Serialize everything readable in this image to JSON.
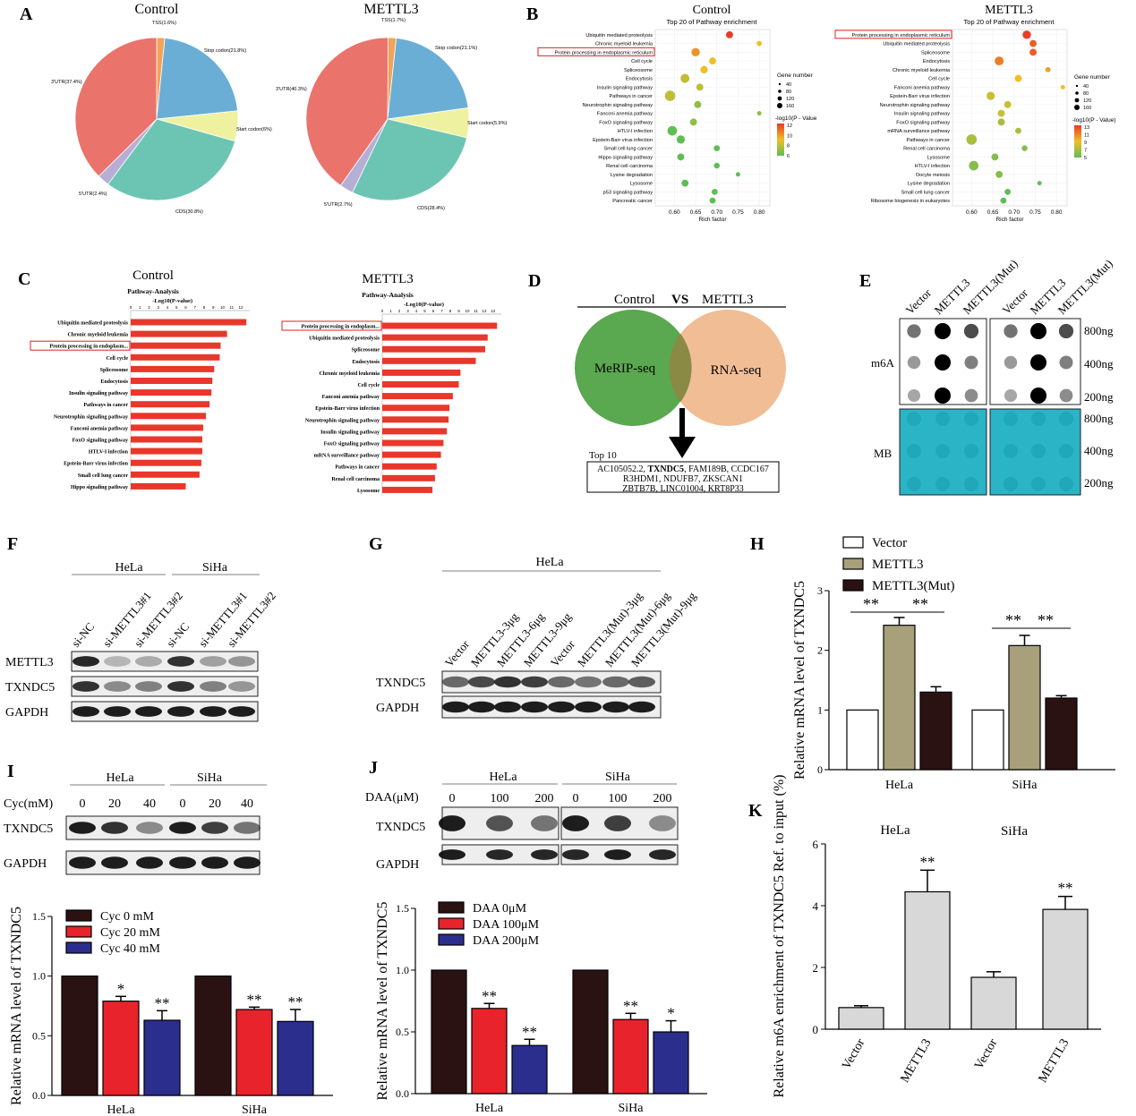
{
  "panels": {
    "A": "A",
    "B": "B",
    "C": "C",
    "D": "D",
    "E": "E",
    "F": "F",
    "G": "G",
    "H": "H",
    "I": "I",
    "J": "J",
    "K": "K"
  },
  "colors": {
    "red": "#e8232b",
    "navy": "#2b2e8c",
    "dark": "#2a1213",
    "khaki": "#a8a07a",
    "gray": "#d8d8d8",
    "cyan": "#2bb3c6",
    "venn_green": "#5aa84f",
    "venn_orange": "#f1bd95",
    "pie": [
      "#f4a259",
      "#6aaed6",
      "#eef2a0",
      "#6cc5b3",
      "#b7aed6",
      "#ea736c"
    ]
  },
  "chart_data": [
    {
      "id": "A1",
      "type": "pie",
      "title": "Control",
      "slices": [
        {
          "label": "TSS(1.6%)",
          "value": 1.6,
          "color": "#f4a259"
        },
        {
          "label": "Stop codon(21.8%)",
          "value": 21.8,
          "color": "#6aaed6"
        },
        {
          "label": "Start codon(6%)",
          "value": 6,
          "color": "#eef2a0"
        },
        {
          "label": "CDS(30.8%)",
          "value": 30.8,
          "color": "#6cc5b3"
        },
        {
          "label": "5'UTR(2.4%)",
          "value": 2.4,
          "color": "#b7aed6"
        },
        {
          "label": "3'UTR(37.4%)",
          "value": 37.4,
          "color": "#ea736c"
        }
      ]
    },
    {
      "id": "A2",
      "type": "pie",
      "title": "METTL3",
      "slices": [
        {
          "label": "TSS(1.7%)",
          "value": 1.7,
          "color": "#f4a259"
        },
        {
          "label": "Stop codon(21.1%)",
          "value": 21.1,
          "color": "#6aaed6"
        },
        {
          "label": "Start codon(5.9%)",
          "value": 5.9,
          "color": "#eef2a0"
        },
        {
          "label": "CDS(28.4%)",
          "value": 28.4,
          "color": "#6cc5b3"
        },
        {
          "label": "5'UTR(2.7%)",
          "value": 2.7,
          "color": "#b7aed6"
        },
        {
          "label": "3'UTR(40.3%)",
          "value": 40.3,
          "color": "#ea736c"
        }
      ]
    },
    {
      "id": "B1",
      "type": "scatter",
      "title": "Control",
      "subtitle": "Top 20 of Pathway enrichment",
      "xlabel": "Rich factor",
      "xticks": [
        0.6,
        0.65,
        0.7,
        0.75,
        0.8
      ],
      "xlim": [
        0.555,
        0.825
      ],
      "legend_size_title": "Gene number",
      "legend_size": [
        "40",
        "80",
        "120",
        "160"
      ],
      "legend_color_title": "-log10(P - Value",
      "legend_color": [
        "12",
        "10",
        "8",
        "6"
      ],
      "highlight": "Protein processing in endoplasmic reticulum",
      "points": [
        {
          "label": "Ubiquitin mediated proteolysis",
          "x": 0.73,
          "size": 60,
          "c": 12
        },
        {
          "label": "Chronic myeloid leukemia",
          "x": 0.8,
          "size": 25,
          "c": 9
        },
        {
          "label": "Protein processing in endoplasmic reticulum",
          "x": 0.65,
          "size": 95,
          "c": 10
        },
        {
          "label": "Cell cycle",
          "x": 0.69,
          "size": 60,
          "c": 9
        },
        {
          "label": "Spliceosome",
          "x": 0.67,
          "size": 70,
          "c": 9
        },
        {
          "label": "Endocytosis",
          "x": 0.625,
          "size": 110,
          "c": 8
        },
        {
          "label": "Insulin signaling pathway",
          "x": 0.66,
          "size": 60,
          "c": 8
        },
        {
          "label": "Pathways in cancer",
          "x": 0.59,
          "size": 160,
          "c": 8
        },
        {
          "label": "Neurotrophin signaling pathway",
          "x": 0.655,
          "size": 60,
          "c": 7
        },
        {
          "label": "Fanconi anemia pathway",
          "x": 0.8,
          "size": 15,
          "c": 7
        },
        {
          "label": "FoxO signaling pathway",
          "x": 0.645,
          "size": 60,
          "c": 7
        },
        {
          "label": "HTLV-I infection",
          "x": 0.595,
          "size": 130,
          "c": 6
        },
        {
          "label": "Epstein-Barr virus infection",
          "x": 0.615,
          "size": 90,
          "c": 6
        },
        {
          "label": "Small cell lung cancer",
          "x": 0.7,
          "size": 40,
          "c": 6
        },
        {
          "label": "Hippo signaling pathway",
          "x": 0.615,
          "size": 60,
          "c": 6
        },
        {
          "label": "Renal cell carcinoma",
          "x": 0.7,
          "size": 35,
          "c": 6
        },
        {
          "label": "Lysine degradation",
          "x": 0.75,
          "size": 15,
          "c": 6
        },
        {
          "label": "Lysosome",
          "x": 0.625,
          "size": 60,
          "c": 6
        },
        {
          "label": "p53 signaling pathway",
          "x": 0.695,
          "size": 40,
          "c": 6
        },
        {
          "label": "Pancreatic cancer",
          "x": 0.69,
          "size": 40,
          "c": 6
        }
      ]
    },
    {
      "id": "B2",
      "type": "scatter",
      "title": "METTL3",
      "subtitle": "Top 20 of Pathway enrichment",
      "xlabel": "Rich factor",
      "xticks": [
        0.6,
        0.65,
        0.7,
        0.75,
        0.8
      ],
      "xlim": [
        0.555,
        0.825
      ],
      "legend_size_title": "Gene number",
      "legend_size": [
        "40",
        "80",
        "120",
        "160"
      ],
      "legend_color_title": "-log10(P - Value)",
      "legend_color": [
        "13",
        "11",
        "9",
        "7",
        "5"
      ],
      "highlight": "Protein processing in endoplasmic reticulum",
      "points": [
        {
          "label": "Protein processing in endoplasmic reticulum",
          "x": 0.73,
          "size": 95,
          "c": 13
        },
        {
          "label": "Ubiquitin mediated proteolysis",
          "x": 0.745,
          "size": 60,
          "c": 12
        },
        {
          "label": "Spliceosome",
          "x": 0.745,
          "size": 60,
          "c": 12
        },
        {
          "label": "Endocytosis",
          "x": 0.665,
          "size": 110,
          "c": 11
        },
        {
          "label": "Chronic myeloid leukemia",
          "x": 0.78,
          "size": 25,
          "c": 10
        },
        {
          "label": "Cell cycle",
          "x": 0.71,
          "size": 60,
          "c": 9
        },
        {
          "label": "Fanconi anemia pathway",
          "x": 0.815,
          "size": 15,
          "c": 9
        },
        {
          "label": "Epstein-Barr virus infection",
          "x": 0.645,
          "size": 90,
          "c": 8
        },
        {
          "label": "Neurotrophin signaling pathway",
          "x": 0.685,
          "size": 60,
          "c": 8
        },
        {
          "label": "Insulin signaling pathway",
          "x": 0.67,
          "size": 60,
          "c": 8
        },
        {
          "label": "FoxO signaling pathway",
          "x": 0.67,
          "size": 60,
          "c": 7
        },
        {
          "label": "mRNA surveillance pathway",
          "x": 0.71,
          "size": 40,
          "c": 7
        },
        {
          "label": "Pathways in cancer",
          "x": 0.6,
          "size": 160,
          "c": 7
        },
        {
          "label": "Renal cell carcinoma",
          "x": 0.725,
          "size": 35,
          "c": 6
        },
        {
          "label": "Lysosome",
          "x": 0.655,
          "size": 60,
          "c": 6
        },
        {
          "label": "HTLV-I infection",
          "x": 0.605,
          "size": 130,
          "c": 6
        },
        {
          "label": "Oocyte meiosis",
          "x": 0.665,
          "size": 60,
          "c": 6
        },
        {
          "label": "Lysine degradation",
          "x": 0.76,
          "size": 15,
          "c": 5
        },
        {
          "label": "Small cell lung cancer",
          "x": 0.685,
          "size": 40,
          "c": 5
        },
        {
          "label": "Ribosome biogenesis in eukaryotes",
          "x": 0.675,
          "size": 40,
          "c": 5
        }
      ]
    },
    {
      "id": "C1",
      "type": "bar",
      "orientation": "horizontal",
      "title": "Control",
      "subtitle": "Pathway-Analysis",
      "xlabel": "-Log10(P-value)",
      "xticks": [
        "0",
        "1",
        "2",
        "3",
        "4",
        "5",
        "6",
        "7",
        "8",
        "9",
        "10",
        "11",
        "12"
      ],
      "xmax": 13,
      "highlight": "Protein processing in endoplasm...",
      "categories": [
        "Ubiquitin mediated proteolysis",
        "Chronic myeloid leukemia",
        "Protein processing in endoplasm...",
        "Cell cycle",
        "Spliceosome",
        "Endocytosis",
        "Insulin signaling pathway",
        "Pathways in cancer",
        "Neurotrophin signaling pathway",
        "Fanconi anemia pathway",
        "FoxO signaling pathway",
        "HTLV-I infection",
        "Epstein-Barr virus infection",
        "Small cell lung cancer",
        "Hippo signaling pathway"
      ],
      "values": [
        12.6,
        10.5,
        9.8,
        9.7,
        9.1,
        8.9,
        8.8,
        8.6,
        8.2,
        7.9,
        7.8,
        7.8,
        7.7,
        7.5,
        6.0
      ]
    },
    {
      "id": "C2",
      "type": "bar",
      "orientation": "horizontal",
      "title": "METTL3",
      "subtitle": "Pathway-Analysis",
      "xlabel": "-Log10(P-value)",
      "xticks": [
        "0",
        "1",
        "2",
        "3",
        "4",
        "5",
        "6",
        "7",
        "8",
        "9",
        "10",
        "11",
        "12",
        "13"
      ],
      "xmax": 14,
      "highlight": "Protein processing in endoplasm...",
      "categories": [
        "Protein processing in endoplasm...",
        "Ubiquitin mediated proteolysis",
        "Spliceosome",
        "Endocytosis",
        "Chronic myeloid leukemia",
        "Cell cycle",
        "Fanconi anemia pathway",
        "Epstein-Barr virus infection",
        "Neurotrophin signaling pathway",
        "Insulin signaling pathway",
        "FoxO signaling pathway",
        "mRNA surveillance pathway",
        "Pathways in cancer",
        "Renal cell carcinoma",
        "Lysosome"
      ],
      "values": [
        13.5,
        12.4,
        12.1,
        11.0,
        9.2,
        9.0,
        8.3,
        7.9,
        7.8,
        7.6,
        7.2,
        6.9,
        6.4,
        6.2,
        5.9
      ]
    },
    {
      "id": "H",
      "type": "bar",
      "ylabel": "Relative mRNA level of TXNDC5",
      "ylim": [
        0,
        3
      ],
      "yticks": [
        0,
        1,
        2,
        3
      ],
      "categories": [
        "HeLa",
        "SiHa"
      ],
      "series": [
        {
          "name": "Vector",
          "values": [
            1.0,
            1.0
          ],
          "err": [
            0,
            0
          ],
          "color": "#ffffff"
        },
        {
          "name": "METTL3",
          "values": [
            2.42,
            2.08
          ],
          "err": [
            0.13,
            0.17
          ],
          "color": "#a8a07a"
        },
        {
          "name": "METTL3(Mut)",
          "values": [
            1.3,
            1.2
          ],
          "err": [
            0.09,
            0.04
          ],
          "color": "#2a1213"
        }
      ],
      "annotations": [
        "**",
        "**",
        "**",
        "**"
      ]
    },
    {
      "id": "I",
      "type": "bar",
      "ylabel": "Relative mRNA level of TXNDC5",
      "ylim": [
        0,
        1.5
      ],
      "yticks": [
        "0.0",
        "0.5",
        "1.0",
        "1.5"
      ],
      "categories": [
        "HeLa",
        "SiHa"
      ],
      "series": [
        {
          "name": "Cyc 0 mM",
          "values": [
            1.0,
            1.0
          ],
          "err": [
            0,
            0
          ],
          "color": "#2a1213"
        },
        {
          "name": "Cyc 20 mM",
          "values": [
            0.79,
            0.72
          ],
          "err": [
            0.04,
            0.02
          ],
          "color": "#e8232b"
        },
        {
          "name": "Cyc 40 mM",
          "values": [
            0.63,
            0.62
          ],
          "err": [
            0.08,
            0.1
          ],
          "color": "#2b2e8c"
        }
      ],
      "annotations": [
        "*",
        "**",
        "**",
        "**"
      ]
    },
    {
      "id": "J",
      "type": "bar",
      "ylabel": "Relative mRNA level of TXNDC5",
      "ylim": [
        0,
        1.5
      ],
      "yticks": [
        "0.0",
        "0.5",
        "1.0",
        "1.5"
      ],
      "categories": [
        "HeLa",
        "SiHa"
      ],
      "series": [
        {
          "name": "DAA 0μM",
          "values": [
            1.0,
            1.0
          ],
          "err": [
            0,
            0
          ],
          "color": "#2a1213"
        },
        {
          "name": "DAA 100μM",
          "values": [
            0.69,
            0.6
          ],
          "err": [
            0.04,
            0.05
          ],
          "color": "#e8232b"
        },
        {
          "name": "DAA 200μM",
          "values": [
            0.39,
            0.5
          ],
          "err": [
            0.05,
            0.09
          ],
          "color": "#2b2e8c"
        }
      ],
      "annotations": [
        "**",
        "**",
        "**",
        "*"
      ]
    },
    {
      "id": "K",
      "type": "bar",
      "ylabel": "Relative m6A enrichment of TXNDC5  Ref. to input (%)",
      "ylim": [
        0,
        6
      ],
      "yticks": [
        0,
        2,
        4,
        6
      ],
      "group_labels": [
        "HeLa",
        "SiHa"
      ],
      "categories": [
        "Vector",
        "METTL3",
        "Vector",
        "METTL3"
      ],
      "values": [
        0.7,
        4.45,
        1.68,
        3.88
      ],
      "err": [
        0.06,
        0.7,
        0.18,
        0.42
      ],
      "annotations": [
        "",
        "**",
        "",
        "**"
      ]
    }
  ],
  "venn": {
    "left_title": "Control",
    "vs": "VS",
    "right_title": "METTL3",
    "left": "MeRIP-seq",
    "right": "RNA-seq",
    "top_label": "Top 10",
    "genes_line1_a": "AC105052.2, ",
    "genes_line1_b": "TXNDC5",
    "genes_line1_c": ", FAM189B, CCDC167",
    "genes_line2": "R3HDM1, NDUFB7, ZKSCAN1",
    "genes_line3": "ZBTB7B, LINC01004, KRT8P33"
  },
  "dotblot": {
    "lanes": [
      "Vector",
      "METTL3",
      "METTL3(Mut)",
      "Vector",
      "METTL3",
      "METTL3(Mut)"
    ],
    "amounts": [
      "800ng",
      "400ng",
      "200ng"
    ],
    "amounts_mb": [
      "800ng",
      "400ng",
      "200ng"
    ],
    "row_m6a": "m6A",
    "row_mb": "MB"
  },
  "blotF": {
    "groups": [
      "HeLa",
      "SiHa"
    ],
    "lanes": [
      "si-NC",
      "si-METTL3#1",
      "si-METTL3#2",
      "si-NC",
      "si-METTL3#1",
      "si-METTL3#2"
    ],
    "rows": [
      "METTL3",
      "TXNDC5",
      "GAPDH"
    ]
  },
  "blotG": {
    "group": "HeLa",
    "lanes": [
      "Vector",
      "METTL3-3μg",
      "METTL3-6μg",
      "METTL3-9μg",
      "Vector",
      "METTL3(Mut)-3μg",
      "METTL3(Mut)-6μg",
      "METTL3(Mut)-9μg"
    ],
    "rows": [
      "TXNDC5",
      "GAPDH"
    ]
  },
  "blotI": {
    "groups": [
      "HeLa",
      "SiHa"
    ],
    "cond": "Cyc(mM)",
    "doses": [
      "0",
      "20",
      "40",
      "0",
      "20",
      "40"
    ],
    "rows": [
      "TXNDC5",
      "GAPDH"
    ]
  },
  "blotJ": {
    "groups": [
      "HeLa",
      "SiHa"
    ],
    "cond": "DAA(μM)",
    "doses": [
      "0",
      "100",
      "200",
      "0",
      "100",
      "200"
    ],
    "rows": [
      "TXNDC5",
      "GAPDH"
    ]
  }
}
